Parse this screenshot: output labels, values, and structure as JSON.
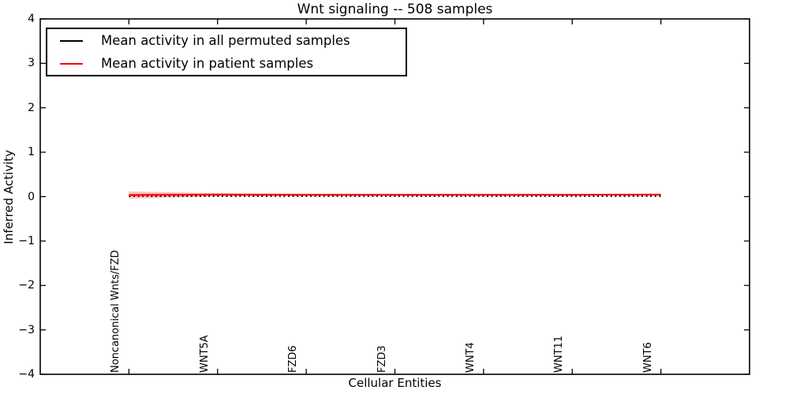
{
  "chart_data": {
    "type": "line",
    "title": "Wnt signaling -- 508 samples",
    "xlabel": "Cellular Entities",
    "ylabel": "Inferred Activity",
    "xlim": [
      -1,
      7
    ],
    "ylim": [
      -4,
      4
    ],
    "grid": false,
    "legend_position": "upper left",
    "yticks": [
      -4,
      -3,
      -2,
      -1,
      0,
      1,
      2,
      3,
      4
    ],
    "ytick_labels": [
      "−4",
      "−3",
      "−2",
      "−1",
      "0",
      "1",
      "2",
      "3",
      "4"
    ],
    "categories": [
      "Noncanonical Wnts/FZD",
      "WNT5A",
      "FZD6",
      "FZD3",
      "WNT4",
      "WNT11",
      "WNT6"
    ],
    "x": [
      0,
      1,
      2,
      3,
      4,
      5,
      6
    ],
    "series": [
      {
        "name": "Mean activity in all permuted samples",
        "color": "#000000",
        "linestyle": "dotted",
        "values": [
          0.01,
          0.01,
          0.01,
          0.01,
          0.01,
          0.01,
          0.01
        ]
      },
      {
        "name": "Mean activity in patient samples",
        "color": "#ff0000",
        "linestyle": "solid",
        "values": [
          0.035,
          0.045,
          0.04,
          0.04,
          0.04,
          0.04,
          0.045
        ]
      }
    ],
    "band": {
      "series": "Mean activity in patient samples",
      "color": "#ff0000",
      "opacity": 0.25,
      "upper": [
        0.115,
        0.08,
        0.06,
        0.05,
        0.05,
        0.05,
        0.06
      ],
      "lower": [
        -0.045,
        0.005,
        0.02,
        0.025,
        0.03,
        0.03,
        0.03
      ]
    },
    "axis_color": "#000000"
  }
}
